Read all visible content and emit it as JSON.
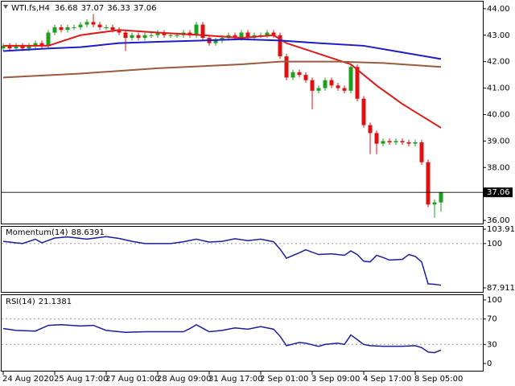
{
  "chart_data": [
    {
      "type": "candlestick",
      "title": "WTI.fs,H4",
      "categories": [
        "24 Aug 2020",
        null,
        null,
        null,
        null,
        null,
        null,
        null,
        "25 Aug 17:00",
        null,
        null,
        null,
        null,
        null,
        null,
        null,
        "27 Aug 01:00",
        null,
        null,
        null,
        null,
        null,
        null,
        null,
        "28 Aug 09:00",
        null,
        null,
        null,
        null,
        null,
        null,
        null,
        "31 Aug 17:00",
        null,
        null,
        null,
        null,
        null,
        null,
        null,
        "2 Sep 01:00",
        null,
        null,
        null,
        null,
        null,
        null,
        null,
        "3 Sep 09:00",
        null,
        null,
        null,
        null,
        null,
        null,
        null,
        "4 Sep 17:00",
        null,
        null,
        null,
        null,
        null,
        null,
        null,
        "8 Sep 05:00",
        null,
        null,
        null,
        null
      ],
      "open": [
        42.5,
        42.6,
        42.5,
        42.6,
        42.5,
        42.6,
        42.7,
        42.6,
        43.1,
        43.3,
        43.2,
        43.3,
        43.3,
        43.4,
        43.5,
        43.4,
        43.3,
        43.3,
        43.2,
        43.1,
        42.9,
        43.0,
        42.9,
        43.0,
        43.0,
        43.1,
        43.0,
        43.0,
        43.0,
        43.1,
        43.0,
        43.4,
        42.9,
        42.7,
        42.8,
        42.9,
        43.0,
        42.9,
        43.1,
        42.9,
        43.0,
        43.0,
        43.1,
        43.0,
        42.2,
        41.4,
        41.6,
        41.5,
        41.3,
        40.9,
        41.0,
        41.3,
        41.1,
        41.0,
        40.9,
        41.8,
        40.6,
        39.6,
        39.3,
        38.9,
        39.0,
        38.95,
        39.0,
        38.95,
        38.9,
        38.95,
        38.2,
        36.6,
        36.68
      ],
      "high": [
        42.7,
        42.7,
        42.7,
        42.7,
        42.7,
        42.8,
        42.8,
        43.2,
        43.4,
        43.4,
        43.4,
        43.4,
        43.5,
        43.6,
        43.8,
        43.5,
        43.4,
        43.4,
        43.3,
        43.2,
        43.1,
        43.1,
        43.1,
        43.1,
        43.2,
        43.2,
        43.1,
        43.1,
        43.2,
        43.2,
        43.5,
        43.5,
        43.0,
        42.9,
        43.0,
        43.1,
        43.1,
        43.2,
        43.2,
        43.1,
        43.1,
        43.2,
        43.2,
        43.1,
        42.3,
        41.7,
        41.7,
        41.6,
        41.4,
        41.1,
        41.4,
        41.4,
        41.2,
        41.1,
        41.9,
        41.9,
        40.7,
        39.7,
        39.4,
        39.1,
        39.1,
        39.1,
        39.1,
        39.05,
        39.05,
        39.05,
        38.3,
        36.8,
        37.07
      ],
      "low": [
        42.4,
        42.4,
        42.4,
        42.4,
        42.4,
        42.5,
        42.5,
        42.5,
        43.0,
        43.1,
        43.1,
        43.2,
        43.2,
        43.3,
        43.3,
        43.2,
        43.2,
        43.1,
        43.0,
        42.4,
        42.8,
        42.8,
        42.8,
        42.9,
        42.9,
        42.9,
        42.9,
        42.9,
        42.9,
        42.9,
        42.9,
        42.8,
        42.6,
        42.6,
        42.7,
        42.8,
        42.8,
        42.8,
        42.8,
        42.8,
        42.9,
        42.9,
        42.9,
        42.1,
        41.3,
        41.3,
        41.4,
        41.2,
        40.2,
        40.8,
        40.9,
        41.0,
        40.9,
        40.8,
        40.8,
        40.5,
        39.5,
        38.5,
        38.5,
        38.8,
        38.85,
        38.85,
        38.85,
        38.8,
        38.8,
        38.1,
        36.5,
        36.1,
        36.33
      ],
      "close": [
        42.6,
        42.5,
        42.6,
        42.5,
        42.6,
        42.7,
        42.6,
        43.1,
        43.3,
        43.2,
        43.3,
        43.3,
        43.4,
        43.5,
        43.4,
        43.3,
        43.3,
        43.2,
        43.1,
        42.9,
        43.0,
        42.9,
        43.0,
        43.0,
        43.1,
        43.0,
        43.0,
        43.0,
        43.1,
        43.0,
        43.4,
        42.9,
        42.7,
        42.8,
        42.9,
        43.0,
        42.9,
        43.1,
        42.9,
        43.0,
        43.0,
        43.1,
        43.0,
        42.2,
        41.4,
        41.6,
        41.5,
        41.3,
        40.9,
        41.0,
        41.3,
        41.1,
        41.0,
        40.9,
        41.8,
        40.6,
        39.6,
        39.3,
        38.9,
        39.0,
        38.95,
        39.0,
        38.95,
        38.9,
        38.95,
        38.2,
        36.6,
        36.68,
        37.06
      ],
      "up_color": "#1ea01e",
      "down_color": "#e01010",
      "series": [
        {
          "color": "#e01818",
          "x": [
            0,
            7,
            12,
            18,
            24,
            31,
            37,
            42,
            44,
            49,
            54,
            58,
            62,
            64,
            68
          ],
          "values": [
            42.6,
            42.6,
            43.0,
            43.2,
            43.1,
            43.0,
            42.9,
            43.0,
            42.7,
            42.3,
            41.9,
            41.1,
            40.4,
            40.1,
            39.5
          ]
        },
        {
          "color": "#1c1cc8",
          "x": [
            0,
            7,
            12,
            18,
            24,
            31,
            37,
            43,
            49,
            56,
            62,
            68
          ],
          "values": [
            42.4,
            42.5,
            42.55,
            42.7,
            42.75,
            42.8,
            42.85,
            42.8,
            42.7,
            42.6,
            42.35,
            42.1
          ]
        },
        {
          "color": "#9c5a3c",
          "x": [
            0,
            12,
            24,
            37,
            43,
            52,
            59,
            68
          ],
          "values": [
            41.4,
            41.55,
            41.75,
            41.9,
            42.0,
            42.0,
            41.95,
            41.8
          ]
        }
      ],
      "ylim": [
        35.88,
        44.27
      ],
      "yticks": [
        {
          "value": 44,
          "label": "44.00"
        },
        {
          "value": 43,
          "label": "43.00"
        },
        {
          "value": 42,
          "label": "42.00"
        },
        {
          "value": 41,
          "label": "41.00"
        },
        {
          "value": 40,
          "label": "40.00"
        },
        {
          "value": 39,
          "label": "39.00"
        },
        {
          "value": 38,
          "label": "38.00"
        },
        {
          "value": 37,
          "label": "37.00"
        },
        {
          "value": 36,
          "label": "36.00"
        }
      ],
      "current_price_line": true,
      "grid": false
    },
    {
      "type": "line",
      "title": "Momentum(14)",
      "color": "#1c1c9c",
      "x": [
        0,
        3,
        5,
        6,
        8,
        10,
        13,
        16,
        18,
        20,
        22,
        26,
        28,
        30,
        32,
        34,
        36,
        38,
        40,
        42,
        43,
        44,
        46,
        47,
        49,
        51,
        53,
        54,
        55,
        56,
        57,
        58,
        59,
        60,
        62,
        63,
        64,
        65,
        66,
        67,
        68
      ],
      "values": [
        100.6,
        100.0,
        101.2,
        100.2,
        101.5,
        101.8,
        101.2,
        101.9,
        101.4,
        100.6,
        100.0,
        100.0,
        100.5,
        101.2,
        100.4,
        100.6,
        101.3,
        100.8,
        101.2,
        100.5,
        98.5,
        96.0,
        97.5,
        98.3,
        97.0,
        97.2,
        96.8,
        98.0,
        97.0,
        95.2,
        95.0,
        96.8,
        96.2,
        95.5,
        95.7,
        97.0,
        96.5,
        95.0,
        89.0,
        88.9,
        88.6391
      ],
      "ylim": [
        87.9116,
        103.9172
      ],
      "yticks": [
        103.9172,
        100,
        87.9116
      ],
      "levels": [
        100
      ]
    },
    {
      "type": "line",
      "title": "RSI(14)",
      "color": "#1c1c9c",
      "x": [
        0,
        2,
        5,
        7,
        9,
        12,
        14,
        16,
        19,
        22,
        25,
        28,
        29,
        30,
        32,
        34,
        36,
        38,
        40,
        42,
        43,
        44,
        46,
        47,
        49,
        50,
        52,
        53,
        54,
        56,
        57,
        59,
        62,
        64,
        65,
        66,
        67,
        68
      ],
      "values": [
        55,
        52,
        51,
        60,
        61,
        59,
        60,
        52,
        49,
        50,
        50,
        50,
        55,
        61,
        50,
        52,
        56,
        54,
        58,
        54,
        43,
        28,
        33,
        32,
        27,
        30,
        32,
        30,
        45,
        30,
        28,
        27,
        27,
        28,
        25,
        18,
        17,
        21.1381
      ],
      "ylim": [
        0,
        100
      ],
      "yticks": [
        100,
        70,
        30,
        0
      ],
      "levels": [
        70,
        30
      ]
    }
  ]
}
